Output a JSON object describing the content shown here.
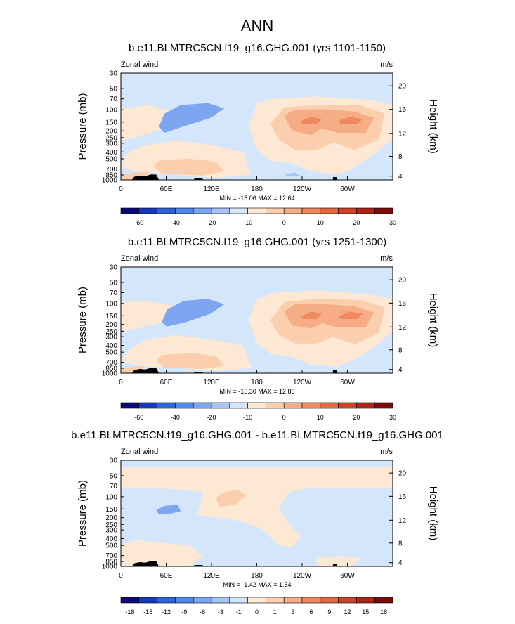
{
  "figure": {
    "title": "ANN"
  },
  "chart_data": [
    {
      "type": "heatmap",
      "title": "b.e11.BLMTRC5CN.f19_g16.GHG.001 (yrs 1101-1150)",
      "left_label": "Zonal wind",
      "right_label": "m/s",
      "ylabel": "Pressure (mb)",
      "ylabel_right": "Height (km)",
      "xticks": [
        "0",
        "60E",
        "120E",
        "180",
        "120W",
        "60W"
      ],
      "yticks": [
        "30",
        "50",
        "70",
        "100",
        "150",
        "200",
        "250",
        "300",
        "400",
        "500",
        "700",
        "850",
        "1000"
      ],
      "height_ticks": [
        "20",
        "16",
        "12",
        "8",
        "4"
      ],
      "stats": "MIN = -15.06  MAX =  12.64",
      "min": -15.06,
      "max": 12.64,
      "colorbar_labels": [
        "-60",
        "-40",
        "-20",
        "-10",
        "0",
        "10",
        "20",
        "30"
      ],
      "colorbar_colors": [
        "#0a0a78",
        "#1638b8",
        "#2e62d8",
        "#4f87ea",
        "#7ea6f0",
        "#a8c4f4",
        "#d4e6fb",
        "#fde8d4",
        "#fbcfae",
        "#f6ad86",
        "#ef8a60",
        "#e5673d",
        "#cf4223",
        "#ac2214",
        "#7a0c0c"
      ]
    },
    {
      "type": "heatmap",
      "title": "b.e11.BLMTRC5CN.f19_g16.GHG.001 (yrs 1251-1300)",
      "left_label": "Zonal wind",
      "right_label": "m/s",
      "ylabel": "Pressure (mb)",
      "ylabel_right": "Height (km)",
      "xticks": [
        "0",
        "60E",
        "120E",
        "180",
        "120W",
        "60W"
      ],
      "yticks": [
        "30",
        "50",
        "70",
        "100",
        "150",
        "200",
        "250",
        "300",
        "400",
        "500",
        "700",
        "850",
        "1000"
      ],
      "height_ticks": [
        "20",
        "16",
        "12",
        "8",
        "4"
      ],
      "stats": "MIN = -15.30  MAX =  12.88",
      "min": -15.3,
      "max": 12.88,
      "colorbar_labels": [
        "-60",
        "-40",
        "-20",
        "-10",
        "0",
        "10",
        "20",
        "30"
      ],
      "colorbar_colors": [
        "#0a0a78",
        "#1638b8",
        "#2e62d8",
        "#4f87ea",
        "#7ea6f0",
        "#a8c4f4",
        "#d4e6fb",
        "#fde8d4",
        "#fbcfae",
        "#f6ad86",
        "#ef8a60",
        "#e5673d",
        "#cf4223",
        "#ac2214",
        "#7a0c0c"
      ]
    },
    {
      "type": "heatmap",
      "title": "b.e11.BLMTRC5CN.f19_g16.GHG.001 - b.e11.BLMTRC5CN.f19_g16.GHG.001",
      "left_label": "Zonal wind",
      "right_label": "m/s",
      "ylabel": "Pressure (mb)",
      "ylabel_right": "Height (km)",
      "xticks": [
        "0",
        "60E",
        "120E",
        "180",
        "120W",
        "60W"
      ],
      "yticks": [
        "30",
        "50",
        "70",
        "100",
        "150",
        "200",
        "250",
        "300",
        "400",
        "500",
        "700",
        "850",
        "1000"
      ],
      "height_ticks": [
        "20",
        "16",
        "12",
        "8",
        "4"
      ],
      "stats": "MIN = -1.42  MAX =  1.54",
      "min": -1.42,
      "max": 1.54,
      "colorbar_labels": [
        "-18",
        "-15",
        "-12",
        "-9",
        "-6",
        "-3",
        "-1",
        "0",
        "1",
        "3",
        "6",
        "9",
        "12",
        "15",
        "18"
      ],
      "colorbar_colors": [
        "#0a0a78",
        "#1638b8",
        "#2e62d8",
        "#4f87ea",
        "#7ea6f0",
        "#a8c4f4",
        "#d4e6fb",
        "#fde8d4",
        "#fbcfae",
        "#f6ad86",
        "#ef8a60",
        "#e5673d",
        "#cf4223",
        "#ac2214",
        "#7a0c0c"
      ]
    }
  ]
}
